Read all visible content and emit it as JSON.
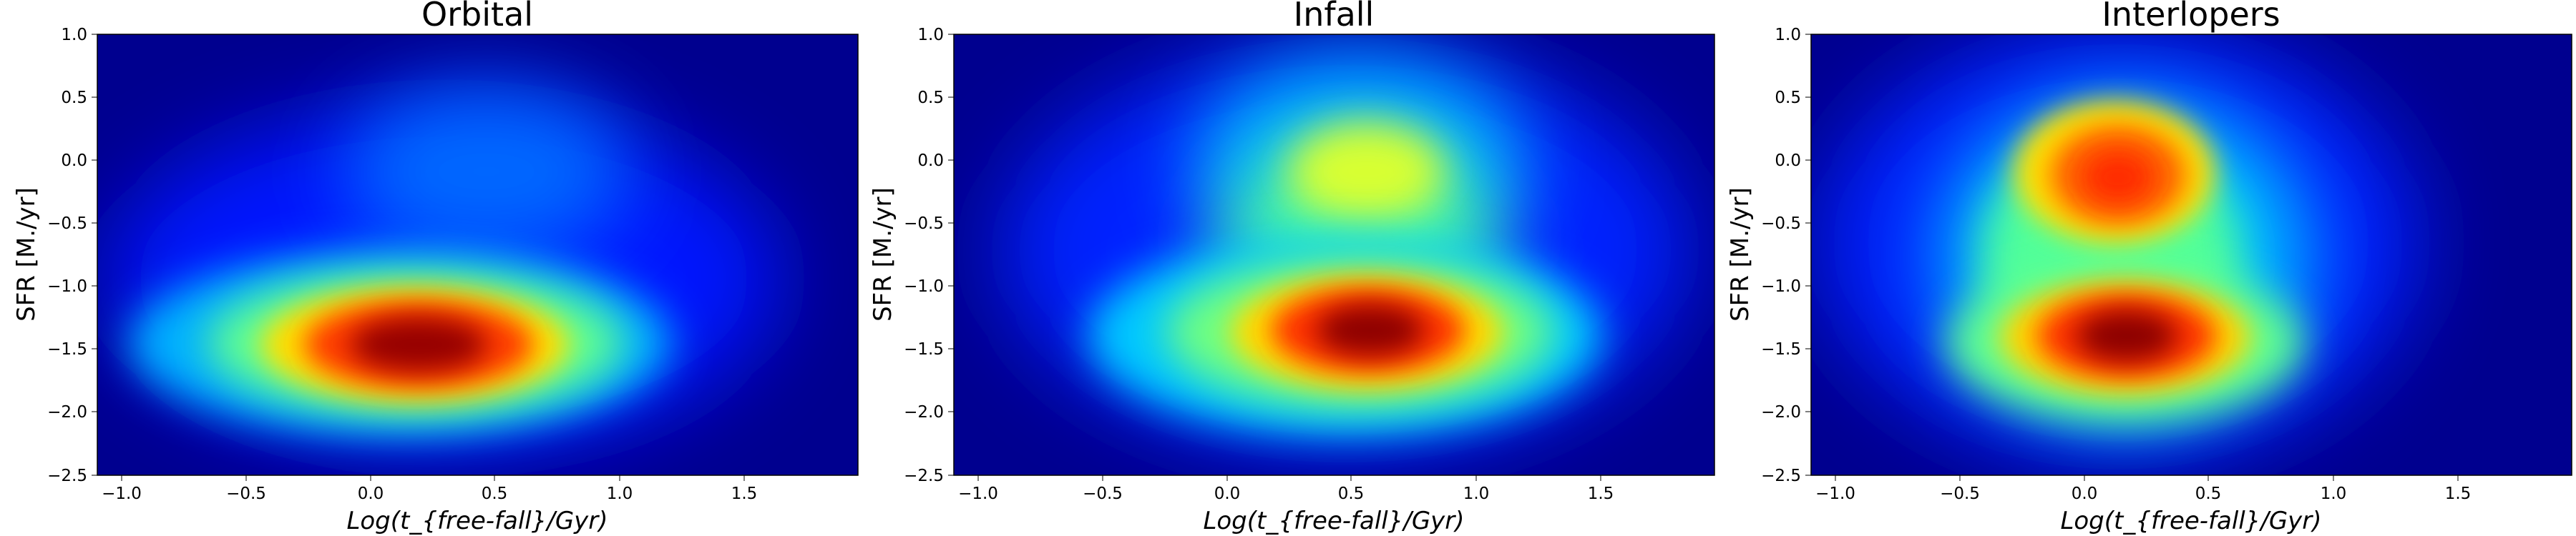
{
  "chart_data": [
    {
      "type": "heatmap",
      "title": "Orbital",
      "xlabel": "Log(t_{free-fall}/Gyr)",
      "ylabel": "SFR [M./yr]",
      "xlim": [
        -1.15,
        1.9
      ],
      "ylim": [
        -2.5,
        1.0
      ],
      "xticks": [
        "−1.0",
        "−0.5",
        "0.0",
        "0.5",
        "1.0",
        "1.5"
      ],
      "yticks": [
        "1.0",
        "0.5",
        "0.0",
        "−0.5",
        "−1.0",
        "−1.5",
        "−2.0",
        "−2.5"
      ],
      "colormap": "jet",
      "density_peaks": [
        {
          "x": 0.15,
          "y": -1.48,
          "relative_density": 1.0
        },
        {
          "x": 0.35,
          "y": 0.0,
          "relative_density": 0.2
        }
      ]
    },
    {
      "type": "heatmap",
      "title": "Infall",
      "xlabel": "Log(t_{free-fall}/Gyr)",
      "ylabel": "SFR [M./yr]",
      "xlim": [
        -1.15,
        1.9
      ],
      "ylim": [
        -2.5,
        1.0
      ],
      "xticks": [
        "−1.0",
        "−0.5",
        "0.0",
        "0.5",
        "1.0",
        "1.5"
      ],
      "yticks": [
        "1.0",
        "0.5",
        "0.0",
        "−0.5",
        "−1.0",
        "−1.5",
        "−2.0",
        "−2.5"
      ],
      "colormap": "jet",
      "density_peaks": [
        {
          "x": 0.6,
          "y": -1.42,
          "relative_density": 1.0
        },
        {
          "x": 0.6,
          "y": -0.15,
          "relative_density": 0.6
        }
      ]
    },
    {
      "type": "heatmap",
      "title": "Interlopers",
      "xlabel": "Log(t_{free-fall}/Gyr)",
      "ylabel": "SFR [M./yr]",
      "xlim": [
        -1.15,
        1.9
      ],
      "ylim": [
        -2.5,
        1.0
      ],
      "xticks": [
        "−1.0",
        "−0.5",
        "0.0",
        "0.5",
        "1.0",
        "1.5"
      ],
      "yticks": [
        "1.0",
        "0.5",
        "0.0",
        "−0.5",
        "−1.0",
        "−1.5",
        "−2.0",
        "−2.5"
      ],
      "colormap": "jet",
      "density_peaks": [
        {
          "x": 0.15,
          "y": -1.42,
          "relative_density": 1.0
        },
        {
          "x": 0.1,
          "y": -0.12,
          "relative_density": 0.85
        }
      ]
    }
  ]
}
